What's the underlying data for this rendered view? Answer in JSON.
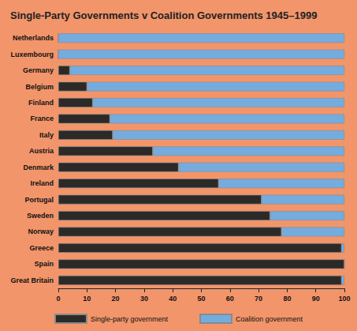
{
  "chart_data": {
    "type": "bar",
    "title": "Single-Party Governments v Coalition Governments 1945–1999",
    "orientation": "horizontal",
    "stacked": true,
    "grid": false,
    "legend": "bottom",
    "categories": [
      "Netherlands",
      "Luxembourg",
      "Germany",
      "Belgium",
      "Finland",
      "France",
      "Italy",
      "Austria",
      "Denmark",
      "Ireland",
      "Portugal",
      "Sweden",
      "Norway",
      "Greece",
      "Spain",
      "Great Britain"
    ],
    "series": [
      {
        "name": "Single-party government",
        "color": "#2b2a28",
        "values": [
          0,
          0,
          4,
          10,
          12,
          18,
          19,
          33,
          42,
          56,
          71,
          74,
          78,
          99,
          100,
          99
        ]
      },
      {
        "name": "Coalition government",
        "color": "#74acdf",
        "values": [
          100,
          100,
          96,
          90,
          88,
          82,
          81,
          67,
          58,
          44,
          29,
          26,
          22,
          1,
          0,
          1
        ]
      }
    ],
    "xlim": [
      0,
      100
    ],
    "xticks": [
      0,
      10,
      20,
      30,
      40,
      50,
      60,
      70,
      80,
      90,
      100
    ]
  }
}
